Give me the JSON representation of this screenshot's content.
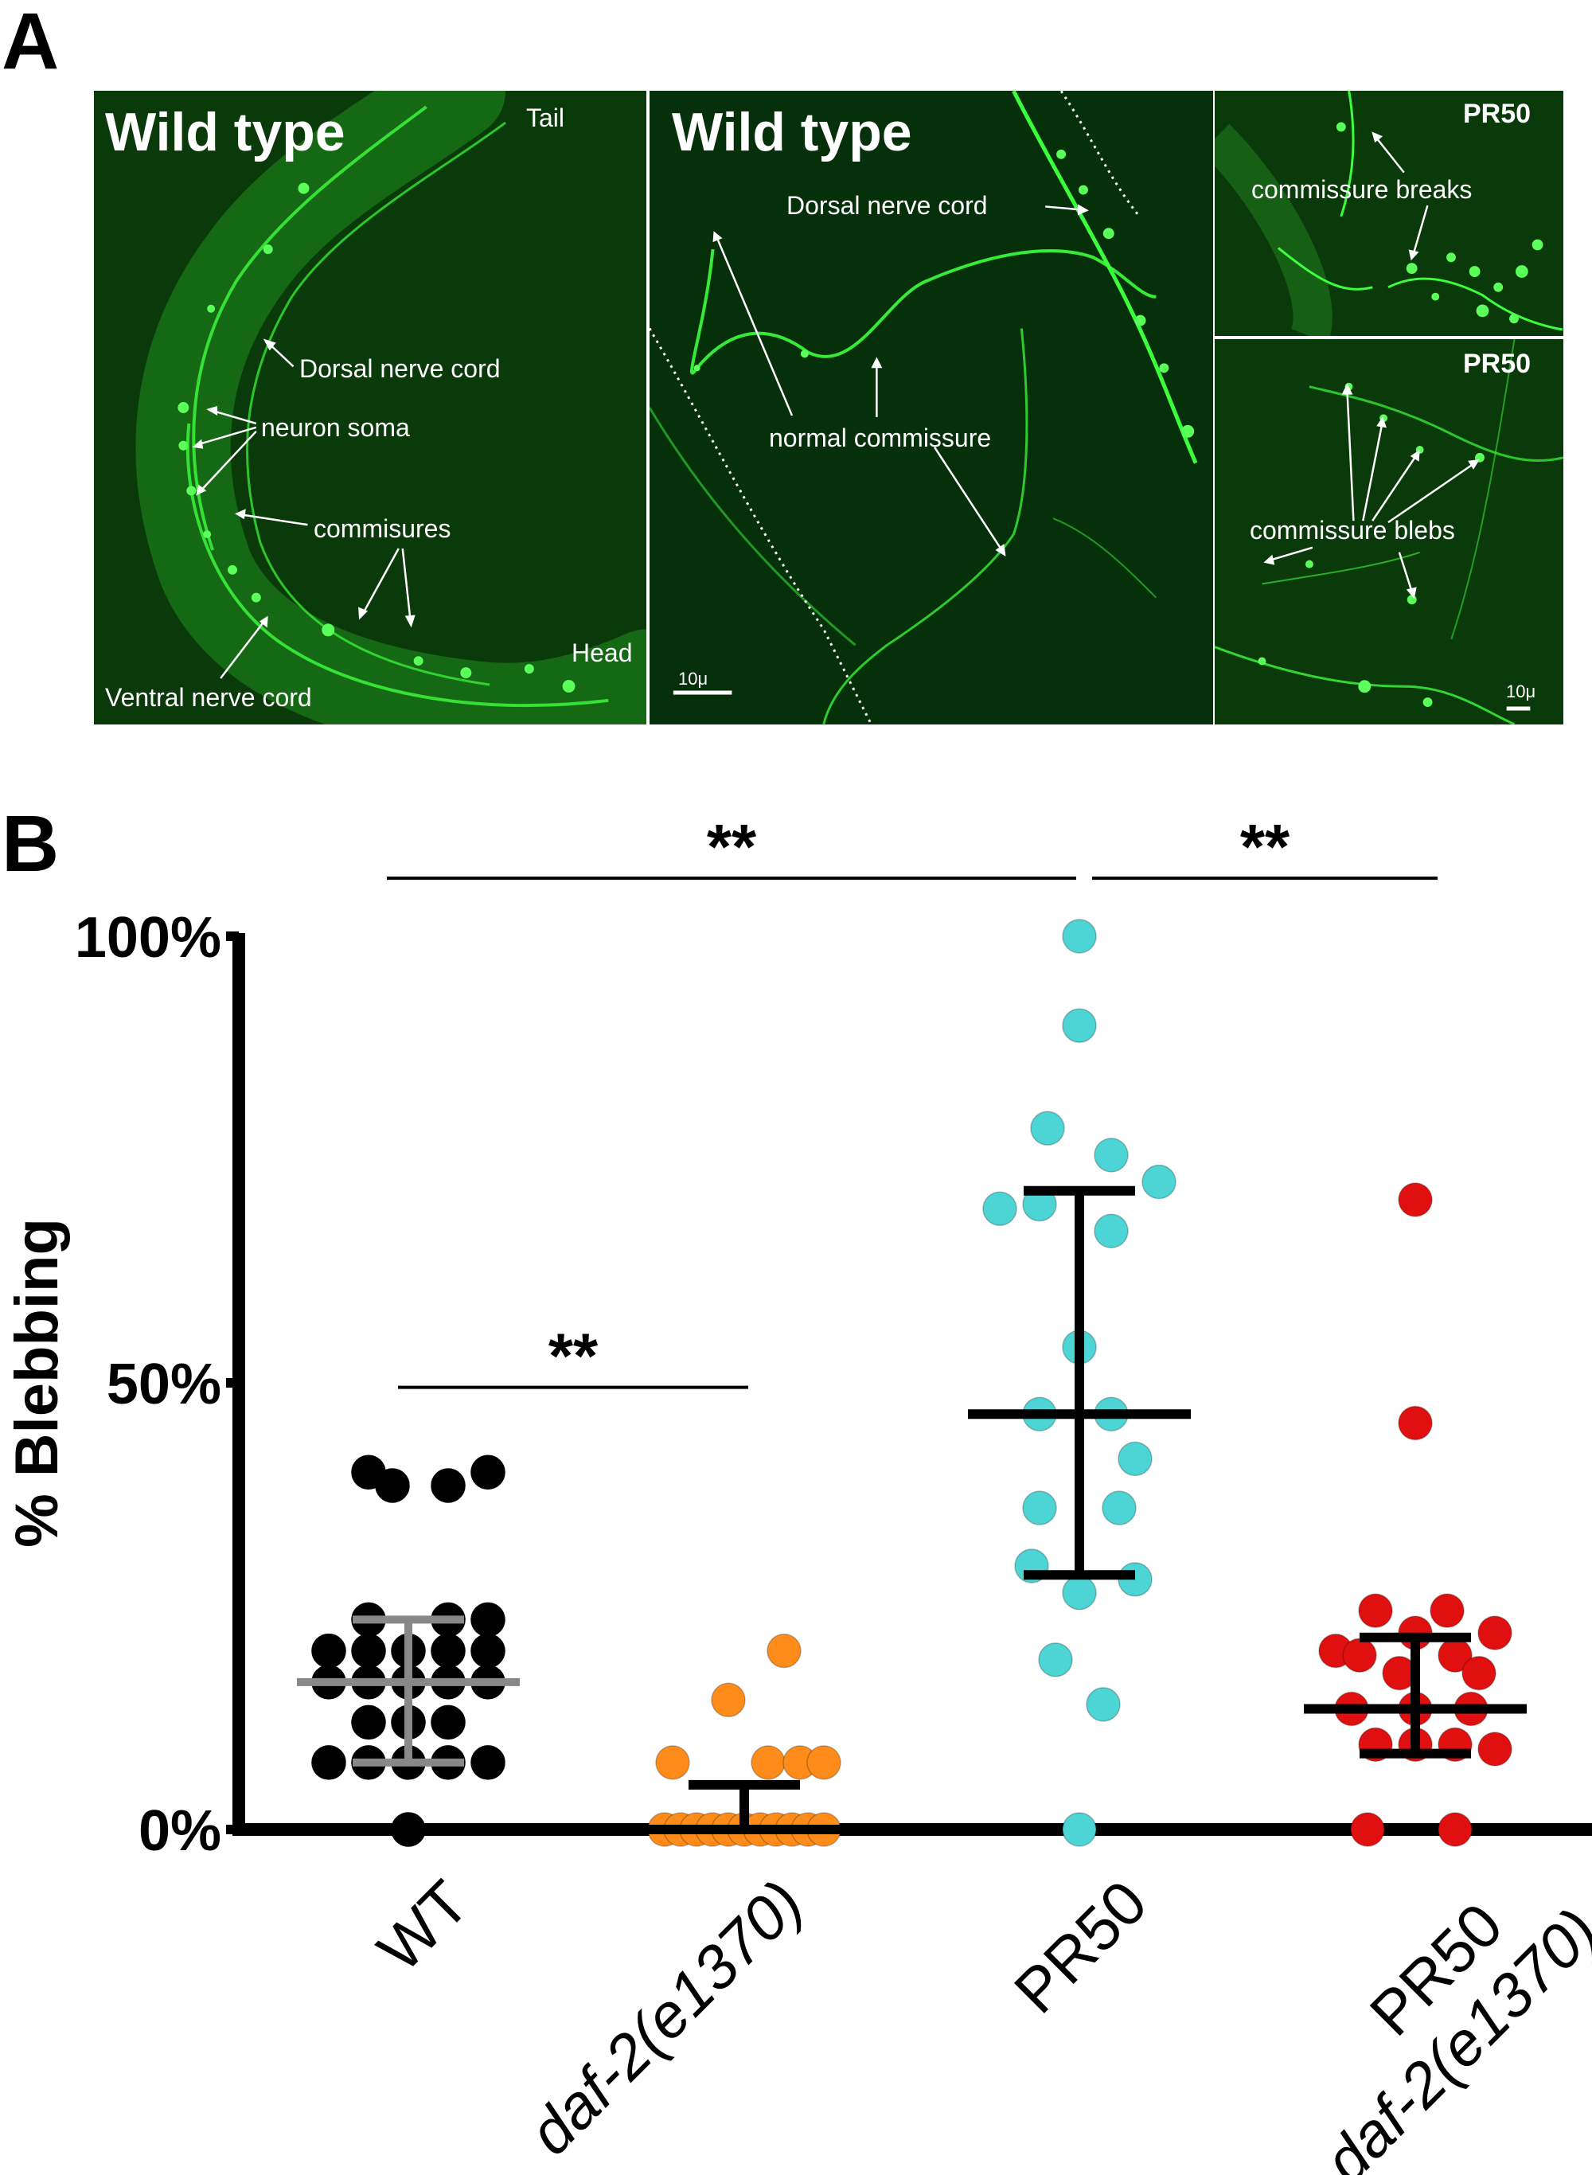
{
  "panel_a": {
    "letter": "A",
    "left": {
      "title": "Wild type",
      "tail": "Tail",
      "head": "Head",
      "dorsal": "Dorsal nerve cord",
      "soma": "neuron soma",
      "commisures": "commisures",
      "ventral": "Ventral nerve cord"
    },
    "middle": {
      "title": "Wild type",
      "dorsal": "Dorsal nerve cord",
      "normal": "normal commissure",
      "scale": "10μ"
    },
    "top_right": {
      "tag": "PR50",
      "label": "commissure breaks"
    },
    "bottom_right": {
      "tag": "PR50",
      "label": "commissure blebs",
      "scale": "10μ"
    },
    "colors": {
      "background": "#0a3a0a",
      "signal": "#33ff33"
    }
  },
  "panel_b": {
    "letter": "B"
  },
  "chart_data": {
    "type": "scatter",
    "ylabel": "% Blebbing",
    "ylim": [
      0,
      100
    ],
    "yticks": [
      "0%",
      "50%",
      "100%"
    ],
    "yticks_values": [
      0,
      50,
      100
    ],
    "categories": [
      {
        "label": "WT",
        "label2": ""
      },
      {
        "label": "daf-2(e1370)",
        "label2": "",
        "italic": true
      },
      {
        "label": "PR50",
        "label2": ""
      },
      {
        "label": "PR50",
        "label2": "daf-2(e1370)"
      }
    ],
    "series": [
      {
        "name": "WT",
        "color": "#000000",
        "bar_color": "#888888",
        "mean": 16.5,
        "err_low": 7.5,
        "err_high": 23.5,
        "points": [
          [
            -0.5,
            40
          ],
          [
            -0.2,
            38.5
          ],
          [
            0.5,
            38.5
          ],
          [
            1.0,
            40
          ],
          [
            -0.5,
            23.5
          ],
          [
            0.5,
            23.5
          ],
          [
            1.0,
            23.5
          ],
          [
            -1.0,
            20
          ],
          [
            -0.5,
            20
          ],
          [
            0,
            20
          ],
          [
            0.5,
            20
          ],
          [
            1.0,
            20
          ],
          [
            -1.0,
            16.5
          ],
          [
            -0.5,
            16.5
          ],
          [
            0,
            16.5
          ],
          [
            0.5,
            16.5
          ],
          [
            1.0,
            16.5
          ],
          [
            -0.5,
            12
          ],
          [
            0,
            12
          ],
          [
            0.5,
            12
          ],
          [
            -1.0,
            7.5
          ],
          [
            -0.5,
            7.5
          ],
          [
            0,
            7.5
          ],
          [
            0.5,
            7.5
          ],
          [
            1.0,
            7.5
          ],
          [
            0,
            0
          ]
        ]
      },
      {
        "name": "daf-2(e1370)",
        "color": "#ff8c1a",
        "bar_color": "#000000",
        "mean": 0,
        "err_low": 0,
        "err_high": 5,
        "points": [
          [
            0.5,
            20
          ],
          [
            -0.2,
            14.5
          ],
          [
            -0.9,
            7.5
          ],
          [
            0.3,
            7.5
          ],
          [
            0.7,
            7.5
          ],
          [
            1.0,
            7.5
          ],
          [
            -1.0,
            0
          ],
          [
            -0.8,
            0
          ],
          [
            -0.6,
            0
          ],
          [
            -0.4,
            0
          ],
          [
            -0.2,
            0
          ],
          [
            0,
            0
          ],
          [
            0.2,
            0
          ],
          [
            0.4,
            0
          ],
          [
            0.6,
            0
          ],
          [
            0.8,
            0
          ],
          [
            1.0,
            0
          ]
        ]
      },
      {
        "name": "PR50",
        "color": "#4dd4d4",
        "bar_color": "#000000",
        "mean": 46.5,
        "err_low": 28.5,
        "err_high": 71.5,
        "points": [
          [
            0,
            100
          ],
          [
            0,
            90
          ],
          [
            -0.4,
            78.5
          ],
          [
            0.4,
            75.5
          ],
          [
            1.0,
            72.5
          ],
          [
            -1.0,
            69.5
          ],
          [
            -0.5,
            70
          ],
          [
            0.4,
            67
          ],
          [
            0,
            54
          ],
          [
            -0.5,
            46.5
          ],
          [
            0.4,
            46.5
          ],
          [
            0.7,
            41.5
          ],
          [
            -0.5,
            36
          ],
          [
            0.5,
            36
          ],
          [
            -0.6,
            29.5
          ],
          [
            0.7,
            28
          ],
          [
            0,
            26.5
          ],
          [
            -0.3,
            19
          ],
          [
            0.3,
            14
          ],
          [
            0,
            0
          ]
        ]
      },
      {
        "name": "PR50 daf-2(e1370)",
        "color": "#e01010",
        "bar_color": "#000000",
        "mean": 13.5,
        "err_low": 8.5,
        "err_high": 21.5,
        "points": [
          [
            0,
            70.5
          ],
          [
            0,
            45.5
          ],
          [
            -0.5,
            24.5
          ],
          [
            0.4,
            24.5
          ],
          [
            -1.0,
            20
          ],
          [
            0,
            22
          ],
          [
            1.0,
            22
          ],
          [
            -0.7,
            19.5
          ],
          [
            0.5,
            19.5
          ],
          [
            0.8,
            17.5
          ],
          [
            -0.2,
            17.5
          ],
          [
            -0.8,
            13.5
          ],
          [
            0,
            13.5
          ],
          [
            0.7,
            13.5
          ],
          [
            -0.5,
            9.5
          ],
          [
            0,
            9.5
          ],
          [
            0.5,
            9.5
          ],
          [
            1.0,
            9
          ],
          [
            -0.6,
            0
          ],
          [
            0.5,
            0
          ]
        ]
      }
    ],
    "significance": [
      {
        "from": 0,
        "to": 1,
        "y": 49.5,
        "label": "**"
      },
      {
        "from": 0,
        "to": 2,
        "y": 106.5,
        "label": "**"
      },
      {
        "from": 2,
        "to": 3,
        "y": 106.5,
        "label": "**"
      }
    ]
  }
}
